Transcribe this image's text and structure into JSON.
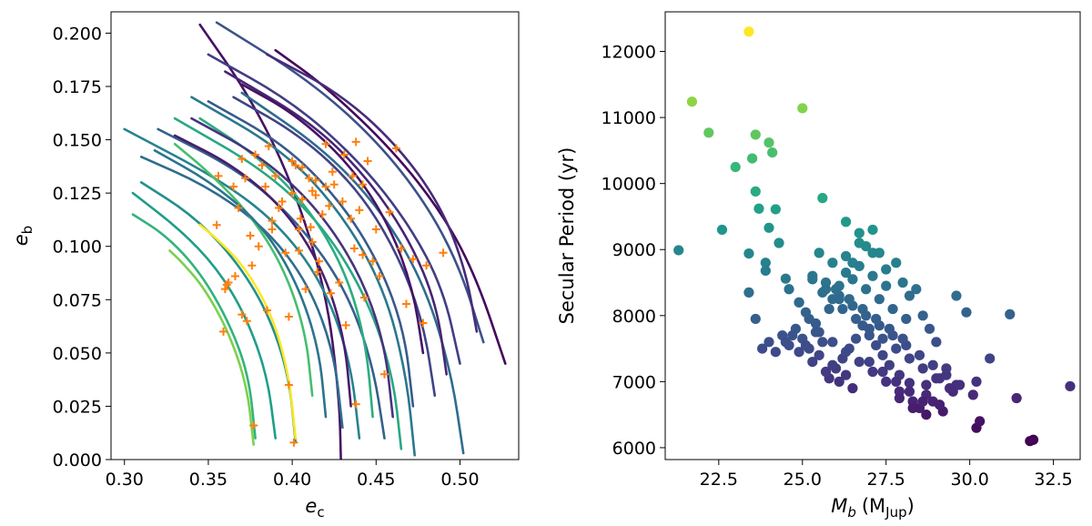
{
  "chart_data": [
    {
      "type": "line",
      "xlabel": "e",
      "xlabel_sub": "c",
      "ylabel": "e",
      "ylabel_sub": "b",
      "xlim": [
        0.292,
        0.535
      ],
      "ylim": [
        0.0,
        0.21
      ],
      "x_ticks": [
        0.3,
        0.35,
        0.4,
        0.45,
        0.5
      ],
      "x_tick_labels": [
        "0.30",
        "0.35",
        "0.40",
        "0.45",
        "0.50"
      ],
      "y_ticks": [
        0.0,
        0.025,
        0.05,
        0.075,
        0.1,
        0.125,
        0.15,
        0.175,
        0.2
      ],
      "y_tick_labels": [
        "0.000",
        "0.025",
        "0.050",
        "0.075",
        "0.100",
        "0.125",
        "0.150",
        "0.175",
        "0.200"
      ],
      "grid": false,
      "colormap": "viridis",
      "marker_color": "#ff7f0e",
      "curves": [
        {
          "x": [
            0.429,
            0.428,
            0.42,
            0.4,
            0.375,
            0.345
          ],
          "y": [
            0.0,
            0.03,
            0.08,
            0.13,
            0.17,
            0.204
          ],
          "t": 0.05
        },
        {
          "x": [
            0.527,
            0.51,
            0.49,
            0.46,
            0.42,
            0.39
          ],
          "y": [
            0.045,
            0.085,
            0.115,
            0.145,
            0.175,
            0.192
          ],
          "t": 0.02
        },
        {
          "x": [
            0.514,
            0.5,
            0.48,
            0.45,
            0.41,
            0.355
          ],
          "y": [
            0.055,
            0.09,
            0.12,
            0.15,
            0.178,
            0.205
          ],
          "t": 0.25
        },
        {
          "x": [
            0.5,
            0.49,
            0.47,
            0.44,
            0.4,
            0.35
          ],
          "y": [
            0.045,
            0.08,
            0.11,
            0.14,
            0.168,
            0.19
          ],
          "t": 0.18
        },
        {
          "x": [
            0.502,
            0.495,
            0.48,
            0.455,
            0.42,
            0.37
          ],
          "y": [
            0.003,
            0.04,
            0.08,
            0.115,
            0.145,
            0.172
          ],
          "t": 0.35
        },
        {
          "x": [
            0.473,
            0.468,
            0.455,
            0.43,
            0.395,
            0.34
          ],
          "y": [
            0.002,
            0.04,
            0.08,
            0.115,
            0.145,
            0.17
          ],
          "t": 0.4
        },
        {
          "x": [
            0.465,
            0.46,
            0.445,
            0.42,
            0.385,
            0.33
          ],
          "y": [
            0.005,
            0.04,
            0.075,
            0.108,
            0.135,
            0.16
          ],
          "t": 0.6
        },
        {
          "x": [
            0.455,
            0.448,
            0.432,
            0.405,
            0.37,
            0.32
          ],
          "y": [
            0.01,
            0.045,
            0.08,
            0.11,
            0.135,
            0.155
          ],
          "t": 0.3
        },
        {
          "x": [
            0.44,
            0.435,
            0.42,
            0.395,
            0.36,
            0.3
          ],
          "y": [
            0.01,
            0.045,
            0.08,
            0.108,
            0.13,
            0.155
          ],
          "t": 0.45
        },
        {
          "x": [
            0.43,
            0.425,
            0.41,
            0.385,
            0.35,
            0.31
          ],
          "y": [
            0.015,
            0.05,
            0.082,
            0.108,
            0.128,
            0.142
          ],
          "t": 0.35
        },
        {
          "x": [
            0.402,
            0.398,
            0.385,
            0.365,
            0.34,
            0.31
          ],
          "y": [
            0.008,
            0.04,
            0.07,
            0.095,
            0.115,
            0.13
          ],
          "t": 0.5
        },
        {
          "x": [
            0.39,
            0.385,
            0.372,
            0.355,
            0.333,
            0.305
          ],
          "y": [
            0.01,
            0.04,
            0.068,
            0.09,
            0.108,
            0.125
          ],
          "t": 0.55
        },
        {
          "x": [
            0.378,
            0.374,
            0.362,
            0.345,
            0.325,
            0.305
          ],
          "y": [
            0.01,
            0.04,
            0.065,
            0.088,
            0.105,
            0.115
          ],
          "t": 0.65
        },
        {
          "x": [
            0.402,
            0.398,
            0.388,
            0.372,
            0.356,
            0.345
          ],
          "y": [
            0.01,
            0.04,
            0.068,
            0.09,
            0.103,
            0.11
          ],
          "t": 1.0
        },
        {
          "x": [
            0.377,
            0.373,
            0.362,
            0.348,
            0.335,
            0.327
          ],
          "y": [
            0.007,
            0.035,
            0.06,
            0.08,
            0.092,
            0.098
          ],
          "t": 0.8
        },
        {
          "x": [
            0.412,
            0.408,
            0.395,
            0.375,
            0.35,
            0.33
          ],
          "y": [
            0.03,
            0.06,
            0.09,
            0.115,
            0.135,
            0.148
          ],
          "t": 0.7
        },
        {
          "x": [
            0.448,
            0.444,
            0.432,
            0.41,
            0.38,
            0.345
          ],
          "y": [
            0.02,
            0.055,
            0.088,
            0.118,
            0.142,
            0.16
          ],
          "t": 0.62
        },
        {
          "x": [
            0.485,
            0.478,
            0.462,
            0.438,
            0.405,
            0.365
          ],
          "y": [
            0.03,
            0.065,
            0.098,
            0.128,
            0.152,
            0.17
          ],
          "t": 0.2
        },
        {
          "x": [
            0.492,
            0.486,
            0.47,
            0.445,
            0.412,
            0.36
          ],
          "y": [
            0.04,
            0.073,
            0.103,
            0.132,
            0.158,
            0.182
          ],
          "t": 0.1
        },
        {
          "x": [
            0.472,
            0.467,
            0.452,
            0.428,
            0.395,
            0.35
          ],
          "y": [
            0.025,
            0.06,
            0.092,
            0.122,
            0.148,
            0.168
          ],
          "t": 0.28
        },
        {
          "x": [
            0.46,
            0.455,
            0.44,
            0.415,
            0.382,
            0.34
          ],
          "y": [
            0.02,
            0.055,
            0.088,
            0.118,
            0.142,
            0.16
          ],
          "t": 0.15
        },
        {
          "x": [
            0.435,
            0.431,
            0.418,
            0.395,
            0.365,
            0.33
          ],
          "y": [
            0.025,
            0.058,
            0.09,
            0.118,
            0.138,
            0.152
          ],
          "t": 0.08
        },
        {
          "x": [
            0.42,
            0.416,
            0.403,
            0.382,
            0.352,
            0.318
          ],
          "y": [
            0.02,
            0.052,
            0.083,
            0.11,
            0.13,
            0.145
          ],
          "t": 0.38
        },
        {
          "x": [
            0.478,
            0.472,
            0.458,
            0.435,
            0.402,
            0.37
          ],
          "y": [
            0.05,
            0.08,
            0.11,
            0.138,
            0.162,
            0.176
          ],
          "t": 0.05
        },
        {
          "x": [
            0.51,
            0.503,
            0.488,
            0.462,
            0.428,
            0.385
          ],
          "y": [
            0.06,
            0.09,
            0.12,
            0.148,
            0.172,
            0.19
          ],
          "t": 0.12
        }
      ],
      "markers": {
        "x": [
          0.355,
          0.36,
          0.362,
          0.365,
          0.368,
          0.37,
          0.372,
          0.375,
          0.376,
          0.378,
          0.38,
          0.382,
          0.384,
          0.386,
          0.388,
          0.39,
          0.392,
          0.394,
          0.396,
          0.398,
          0.4,
          0.402,
          0.404,
          0.405,
          0.406,
          0.408,
          0.41,
          0.411,
          0.412,
          0.414,
          0.415,
          0.416,
          0.418,
          0.42,
          0.422,
          0.424,
          0.425,
          0.428,
          0.43,
          0.432,
          0.435,
          0.437,
          0.438,
          0.44,
          0.442,
          0.443,
          0.445,
          0.448,
          0.45,
          0.452,
          0.455,
          0.458,
          0.462,
          0.465,
          0.468,
          0.472,
          0.478,
          0.48,
          0.49,
          0.359,
          0.361,
          0.37,
          0.373,
          0.377,
          0.385,
          0.398,
          0.401,
          0.406,
          0.412,
          0.42,
          0.431,
          0.438,
          0.356,
          0.366,
          0.388,
          0.4,
          0.404,
          0.414,
          0.423,
          0.436,
          0.442
        ],
        "y": [
          0.11,
          0.08,
          0.083,
          0.128,
          0.118,
          0.141,
          0.132,
          0.105,
          0.091,
          0.143,
          0.1,
          0.138,
          0.128,
          0.147,
          0.108,
          0.133,
          0.118,
          0.121,
          0.097,
          0.067,
          0.125,
          0.138,
          0.108,
          0.113,
          0.122,
          0.08,
          0.132,
          0.109,
          0.126,
          0.131,
          0.088,
          0.093,
          0.115,
          0.148,
          0.119,
          0.135,
          0.129,
          0.083,
          0.121,
          0.063,
          0.113,
          0.099,
          0.149,
          0.117,
          0.129,
          0.076,
          0.14,
          0.093,
          0.108,
          0.086,
          0.04,
          0.116,
          0.146,
          0.099,
          0.073,
          0.094,
          0.064,
          0.091,
          0.097,
          0.06,
          0.082,
          0.068,
          0.065,
          0.016,
          0.07,
          0.035,
          0.008,
          0.137,
          0.102,
          0.128,
          0.143,
          0.026,
          0.133,
          0.086,
          0.112,
          0.14,
          0.098,
          0.124,
          0.078,
          0.133,
          0.096
        ]
      }
    },
    {
      "type": "scatter",
      "xlabel": "M",
      "xlabel_sub": "b",
      "xlabel_unit": "(M",
      "xlabel_unit_sub": "Jup",
      "xlabel_unit_close": ")",
      "ylabel": "Secular Period (yr)",
      "xlim": [
        20.9,
        33.3
      ],
      "ylim": [
        5820,
        12600
      ],
      "x_ticks": [
        22.5,
        25.0,
        27.5,
        30.0,
        32.5
      ],
      "x_tick_labels": [
        "22.5",
        "25.0",
        "27.5",
        "30.0",
        "32.5"
      ],
      "y_ticks": [
        6000,
        7000,
        8000,
        9000,
        10000,
        11000,
        12000
      ],
      "y_tick_labels": [
        "6000",
        "7000",
        "8000",
        "9000",
        "10000",
        "11000",
        "12000"
      ],
      "grid": false,
      "colormap": "viridis",
      "color_by": "y",
      "points": {
        "x": [
          23.4,
          21.7,
          22.2,
          25.0,
          23.6,
          24.0,
          23.5,
          24.1,
          23.0,
          23.6,
          23.7,
          25.6,
          24.2,
          22.6,
          24.0,
          23.4,
          21.3,
          24.3,
          23.9,
          23.9,
          24.5,
          24.6,
          24.9,
          25.2,
          25.4,
          25.6,
          25.8,
          26.1,
          26.3,
          26.5,
          26.7,
          26.9,
          27.1,
          27.3,
          27.5,
          27.8,
          28.0,
          28.2,
          28.4,
          28.6,
          28.8,
          29.0,
          29.3,
          29.6,
          29.9,
          30.2,
          30.6,
          31.2,
          31.4,
          31.8,
          31.9,
          33.0,
          29.6,
          30.2,
          30.3,
          29.2,
          28.9,
          28.7,
          28.5,
          28.2,
          27.9,
          27.6,
          27.4,
          27.2,
          27.0,
          26.8,
          26.6,
          26.4,
          26.2,
          26.0,
          25.8,
          25.6,
          25.4,
          25.2,
          25.0,
          24.8,
          24.6,
          24.4,
          24.2,
          24.0,
          23.8,
          23.6,
          23.4,
          25.3,
          25.7,
          26.1,
          26.5,
          26.9,
          27.3,
          27.7,
          28.1,
          28.5,
          28.9,
          29.3,
          29.7,
          30.1,
          25.5,
          25.9,
          26.3,
          26.7,
          27.1,
          27.5,
          27.9,
          28.3,
          28.7,
          29.1,
          24.9,
          25.1,
          25.9,
          26.2,
          26.6,
          27.0,
          27.4,
          27.8,
          28.2,
          28.6,
          26.0,
          26.4,
          26.8,
          27.2,
          27.6,
          28.0,
          25.3,
          25.7,
          26.1,
          26.5,
          26.9,
          27.3,
          27.7,
          28.1,
          26.3,
          26.7,
          27.1,
          27.5,
          25.5,
          25.9,
          26.3,
          26.7,
          27.1,
          24.7,
          25.1,
          25.5,
          25.9,
          26.3,
          24.5,
          24.9,
          25.3,
          25.7,
          26.1,
          26.5,
          27.9,
          28.3,
          28.7,
          29.1,
          29.5,
          27.0,
          27.4,
          27.8,
          28.2,
          28.6,
          29.0,
          29.4
        ],
        "y": [
          12300,
          11240,
          10770,
          11140,
          10740,
          10620,
          10380,
          10470,
          10250,
          9880,
          9620,
          9780,
          9610,
          9300,
          9330,
          8940,
          8990,
          9100,
          8800,
          8680,
          8560,
          8400,
          8200,
          7950,
          7880,
          8350,
          8100,
          8450,
          9420,
          8800,
          9250,
          9050,
          9300,
          8950,
          8700,
          8800,
          8500,
          8300,
          8400,
          8000,
          7800,
          7600,
          7200,
          8300,
          8050,
          7000,
          7350,
          8020,
          6750,
          6100,
          6120,
          6930,
          6950,
          6300,
          6400,
          6550,
          6700,
          6800,
          6600,
          6980,
          7100,
          7250,
          7400,
          7550,
          7700,
          7850,
          7650,
          7500,
          7350,
          7200,
          7050,
          7600,
          7750,
          7500,
          7650,
          7800,
          7550,
          7700,
          7450,
          7600,
          7500,
          7950,
          8350,
          8600,
          8500,
          8300,
          8150,
          8000,
          7850,
          7700,
          7550,
          7400,
          7250,
          7100,
          6950,
          6800,
          7750,
          7600,
          7450,
          7300,
          7150,
          7000,
          6850,
          6700,
          6950,
          7050,
          8200,
          8050,
          8250,
          8100,
          7950,
          7800,
          7650,
          7500,
          7350,
          7200,
          8400,
          8250,
          8100,
          7950,
          7800,
          7650,
          8550,
          8400,
          8250,
          8550,
          8400,
          8250,
          8100,
          7950,
          8900,
          8750,
          8600,
          8450,
          8950,
          8800,
          8650,
          9100,
          8950,
          7700,
          7550,
          7400,
          7250,
          7100,
          7600,
          7450,
          7300,
          7150,
          7000,
          6900,
          6750,
          6600,
          6500,
          6650,
          6850,
          7300,
          7150,
          7000,
          6850,
          6700,
          7050,
          6900
        ]
      }
    }
  ]
}
